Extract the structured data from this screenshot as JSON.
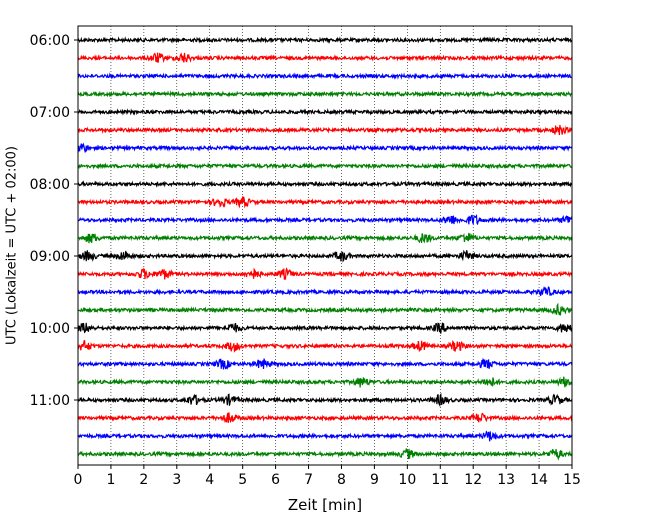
{
  "chart_data": {
    "type": "line",
    "title": "",
    "xlabel": "Zeit  [min]",
    "ylabel": "UTC (Lokalzeit = UTC + 02:00)",
    "xlim": [
      0,
      15
    ],
    "x_ticks": [
      0,
      1,
      2,
      3,
      4,
      5,
      6,
      7,
      8,
      9,
      10,
      11,
      12,
      13,
      14,
      15
    ],
    "y_tick_labels": [
      "06:00",
      "07:00",
      "08:00",
      "09:00",
      "10:00",
      "11:00"
    ],
    "grid": "vertical-dotted",
    "trace_colors": [
      "#000000",
      "#ff0000",
      "#0000ff",
      "#008000"
    ],
    "traces": [
      {
        "time": "06:00",
        "color": "#000000",
        "events": []
      },
      {
        "time": "06:15",
        "color": "#ff0000",
        "events": [
          2.4,
          3.2
        ]
      },
      {
        "time": "06:30",
        "color": "#0000ff",
        "events": []
      },
      {
        "time": "06:45",
        "color": "#008000",
        "events": []
      },
      {
        "time": "07:00",
        "color": "#000000",
        "events": []
      },
      {
        "time": "07:15",
        "color": "#ff0000",
        "events": [
          14.6
        ]
      },
      {
        "time": "07:30",
        "color": "#0000ff",
        "events": [
          0.1
        ]
      },
      {
        "time": "07:45",
        "color": "#008000",
        "events": []
      },
      {
        "time": "08:00",
        "color": "#000000",
        "events": []
      },
      {
        "time": "08:15",
        "color": "#ff0000",
        "events": [
          4.3,
          5.0
        ]
      },
      {
        "time": "08:30",
        "color": "#0000ff",
        "events": [
          11.3,
          12.0,
          14.9
        ]
      },
      {
        "time": "08:45",
        "color": "#008000",
        "events": [
          0.4,
          10.5,
          11.8
        ]
      },
      {
        "time": "09:00",
        "color": "#000000",
        "events": [
          0.3,
          1.4,
          8.0,
          11.8
        ]
      },
      {
        "time": "09:15",
        "color": "#ff0000",
        "events": [
          2.0,
          2.6,
          5.3,
          6.3
        ]
      },
      {
        "time": "09:30",
        "color": "#0000ff",
        "events": [
          14.2
        ]
      },
      {
        "time": "09:45",
        "color": "#008000",
        "events": [
          14.6
        ]
      },
      {
        "time": "10:00",
        "color": "#000000",
        "events": [
          0.2,
          4.7,
          11.0,
          14.8
        ]
      },
      {
        "time": "10:15",
        "color": "#ff0000",
        "events": [
          0.2,
          4.7,
          10.4,
          11.5
        ]
      },
      {
        "time": "10:30",
        "color": "#0000ff",
        "events": [
          4.4,
          5.6,
          12.4
        ]
      },
      {
        "time": "10:45",
        "color": "#008000",
        "events": [
          8.6,
          12.5,
          14.8
        ]
      },
      {
        "time": "11:00",
        "color": "#000000",
        "events": [
          3.5,
          4.6,
          11.0,
          14.5
        ]
      },
      {
        "time": "11:15",
        "color": "#ff0000",
        "events": [
          4.6,
          12.2
        ]
      },
      {
        "time": "11:30",
        "color": "#0000ff",
        "events": [
          12.5
        ]
      },
      {
        "time": "11:45",
        "color": "#008000",
        "events": [
          10.0,
          14.5
        ]
      }
    ]
  }
}
